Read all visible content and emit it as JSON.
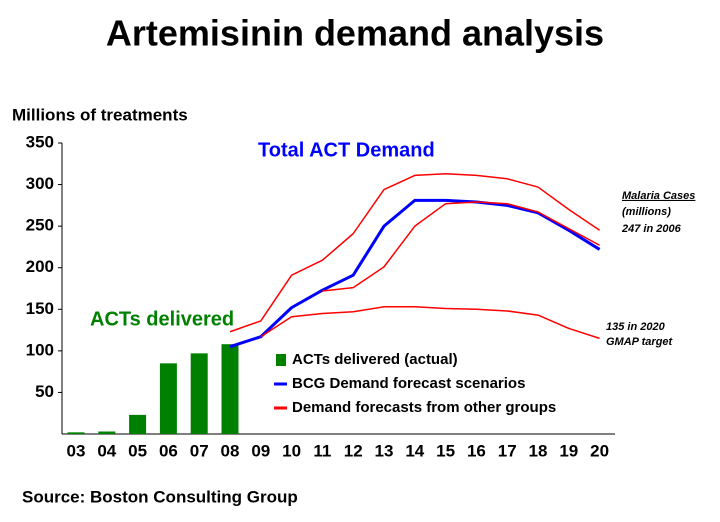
{
  "chart_data": {
    "type": "combo",
    "title": "Artemisinin demand analysis",
    "y_label": "Millions of treatments",
    "source": "Source: Boston Consulting Group",
    "categories": [
      "03",
      "04",
      "05",
      "06",
      "07",
      "08",
      "09",
      "10",
      "11",
      "12",
      "13",
      "14",
      "15",
      "16",
      "17",
      "18",
      "19",
      "20"
    ],
    "ylim": [
      0,
      350
    ],
    "yticks": [
      50,
      100,
      150,
      200,
      250,
      300,
      350
    ],
    "annotations": [
      {
        "text": "Total ACT Demand",
        "color": "#0000ff"
      },
      {
        "text": "ACTs delivered",
        "color": "#008000"
      },
      {
        "text": "Malaria Cases",
        "color": "#000000"
      },
      {
        "text": "(millions)",
        "color": "#000000"
      },
      {
        "text": "247 in 2006",
        "color": "#000000"
      },
      {
        "text": "135  in  2020",
        "color": "#000000"
      },
      {
        "text": "GMAP target",
        "color": "#000000"
      }
    ],
    "series": [
      {
        "name": "ACTs delivered (actual)",
        "type": "bar",
        "color": "#008000",
        "values": [
          2,
          3,
          23,
          85,
          97,
          108,
          null,
          null,
          null,
          null,
          null,
          null,
          null,
          null,
          null,
          null,
          null,
          null
        ]
      },
      {
        "name": "BCG Demand forecast scenarios",
        "type": "line",
        "color": "#0000ff",
        "lines": [
          [
            null,
            null,
            null,
            null,
            null,
            105,
            117,
            152,
            173,
            191,
            250,
            281,
            281,
            279,
            275,
            266,
            245,
            222
          ]
        ]
      },
      {
        "name": "Demand forecasts from other groups",
        "type": "line",
        "color": "#ff0000",
        "lines": [
          [
            null,
            null,
            null,
            null,
            null,
            123,
            136,
            191,
            209,
            241,
            294,
            311,
            313,
            311,
            307,
            297,
            270,
            245
          ],
          [
            null,
            null,
            null,
            null,
            null,
            null,
            null,
            null,
            172,
            176,
            201,
            250,
            277,
            279,
            277,
            267,
            247,
            227
          ],
          [
            null,
            null,
            null,
            null,
            null,
            null,
            117,
            141,
            145,
            147,
            153,
            153,
            151,
            150,
            148,
            143,
            127,
            115
          ]
        ]
      }
    ]
  }
}
